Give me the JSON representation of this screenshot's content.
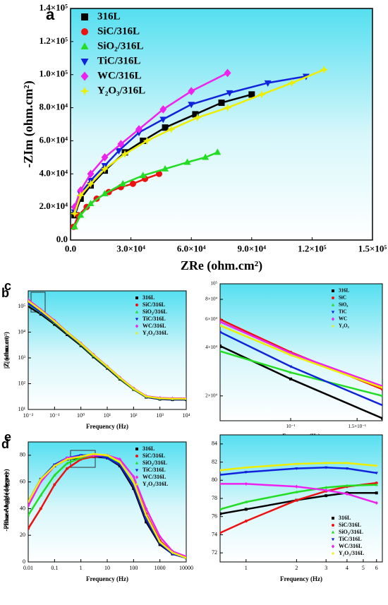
{
  "chart_data": [
    {
      "type": "scatter",
      "panel_label": "a",
      "xlabel": "ZRe (ohm.cm²)",
      "ylabel": "-ZIm (ohm.cm²)",
      "xlim": [
        0,
        150000
      ],
      "ylim": [
        0,
        140000
      ],
      "xticks": [
        {
          "value": 0,
          "label": "0.0"
        },
        {
          "value": 30000,
          "label": "3.0×10⁴"
        },
        {
          "value": 60000,
          "label": "6.0×10⁴"
        },
        {
          "value": 90000,
          "label": "9.0×10⁴"
        },
        {
          "value": 120000,
          "label": "1.2×10⁵"
        },
        {
          "value": 150000,
          "label": "1.5×10⁵"
        }
      ],
      "yticks": [
        {
          "value": 0,
          "label": "0.0"
        },
        {
          "value": 20000,
          "label": "2.0×10⁴"
        },
        {
          "value": 40000,
          "label": "4.0×10⁴"
        },
        {
          "value": 60000,
          "label": "6.0×10⁴"
        },
        {
          "value": 80000,
          "label": "8.0×10⁴"
        },
        {
          "value": 100000,
          "label": "1.0×10⁵"
        },
        {
          "value": 120000,
          "label": "1.2×10⁵"
        },
        {
          "value": 140000,
          "label": "1.4×10⁵"
        }
      ],
      "legend": "top-left",
      "series": [
        {
          "name": "316L",
          "color": "#000000",
          "marker": "square",
          "x": [
            2000,
            5000,
            10000,
            17000,
            27000,
            36000,
            47000,
            62000,
            75000,
            90000
          ],
          "values": [
            15000,
            25000,
            33000,
            42000,
            53000,
            60000,
            68000,
            76000,
            83000,
            88000
          ]
        },
        {
          "name": "SiC/316L",
          "color": "#ee1111",
          "marker": "circle",
          "x": [
            1500,
            4000,
            8000,
            13000,
            19000,
            25000,
            31000,
            37000,
            44000
          ],
          "values": [
            8000,
            15000,
            20000,
            25000,
            29000,
            32000,
            34000,
            37000,
            40000
          ]
        },
        {
          "name": "SiO₂/316L",
          "color": "#22dd22",
          "marker": "triangle",
          "x": [
            2000,
            5000,
            10000,
            17000,
            26000,
            36000,
            47000,
            58000,
            67000,
            73000
          ],
          "values": [
            8000,
            15000,
            22000,
            28000,
            34000,
            39000,
            43000,
            47000,
            50000,
            53000
          ]
        },
        {
          "name": "TiC/316L",
          "color": "#1122dd",
          "marker": "triangle-down",
          "x": [
            2000,
            5000,
            10000,
            17000,
            24000,
            34000,
            46000,
            60000,
            79000,
            98000,
            117000
          ],
          "values": [
            17000,
            28000,
            36000,
            45000,
            54000,
            65000,
            73000,
            82000,
            89000,
            95000,
            99000
          ]
        },
        {
          "name": "WC/316L",
          "color": "#ee22ee",
          "marker": "diamond",
          "x": [
            2000,
            5000,
            10000,
            17000,
            25000,
            34000,
            46000,
            60000,
            78000
          ],
          "values": [
            20000,
            30000,
            40000,
            50000,
            58000,
            67000,
            79000,
            90000,
            101000
          ]
        },
        {
          "name": "Y₂O₃/316L",
          "color": "#eeee00",
          "marker": "star",
          "x": [
            2000,
            5000,
            10000,
            17000,
            27000,
            38000,
            50000,
            63000,
            78000,
            95000,
            110000,
            126000
          ],
          "values": [
            16000,
            27000,
            34000,
            43000,
            52000,
            60000,
            67000,
            74000,
            80000,
            88000,
            95000,
            103000
          ]
        }
      ]
    },
    {
      "type": "line",
      "panel_label": "b",
      "xlabel": "Frequency (Hz)",
      "ylabel": "|Z| (ohm.cm²)",
      "xlog": true,
      "ylog": true,
      "xlim": [
        0.01,
        10000
      ],
      "ylim": [
        10,
        400000
      ],
      "xticks": [
        {
          "value": 0.01,
          "label": "10⁻²"
        },
        {
          "value": 0.1,
          "label": "10⁻¹"
        },
        {
          "value": 1,
          "label": "10⁰"
        },
        {
          "value": 10,
          "label": "10¹"
        },
        {
          "value": 100,
          "label": "10²"
        },
        {
          "value": 1000,
          "label": "10³"
        },
        {
          "value": 10000,
          "label": "10⁴"
        }
      ],
      "yticks": [
        {
          "value": 10,
          "label": "10¹"
        },
        {
          "value": 100,
          "label": "10²"
        },
        {
          "value": 1000,
          "label": "10³"
        },
        {
          "value": 10000,
          "label": "10⁴"
        },
        {
          "value": 100000,
          "label": "10⁵"
        }
      ],
      "legend": "top-right",
      "x": [
        0.01,
        0.03,
        0.1,
        0.3,
        1,
        3,
        10,
        30,
        100,
        300,
        1000,
        3000,
        10000
      ],
      "series": [
        {
          "name": "316L",
          "color": "#000000",
          "marker": "square",
          "values": [
            100000,
            50000,
            20000,
            8000,
            3000,
            1100,
            400,
            150,
            60,
            30,
            25,
            24,
            24
          ]
        },
        {
          "name": "SiC/316L",
          "color": "#ee1111",
          "marker": "circle",
          "values": [
            140000,
            65000,
            25000,
            9500,
            3500,
            1300,
            450,
            170,
            65,
            32,
            27,
            26,
            26
          ]
        },
        {
          "name": "SiO₂/316L",
          "color": "#22dd22",
          "marker": "triangle",
          "values": [
            120000,
            58000,
            23000,
            9000,
            3300,
            1200,
            430,
            160,
            62,
            31,
            26,
            25,
            25
          ]
        },
        {
          "name": "TiC/316L",
          "color": "#1122dd",
          "marker": "triangle-down",
          "values": [
            130000,
            60000,
            24000,
            9200,
            3400,
            1250,
            440,
            165,
            63,
            31,
            26,
            25,
            25
          ]
        },
        {
          "name": "WC/316L",
          "color": "#ee22ee",
          "marker": "diamond",
          "values": [
            180000,
            75000,
            28000,
            10000,
            3700,
            1350,
            470,
            175,
            66,
            33,
            28,
            27,
            27
          ]
        },
        {
          "name": "Y₂O₃/316L",
          "color": "#eeee00",
          "marker": "star",
          "values": [
            160000,
            70000,
            26000,
            9800,
            3600,
            1300,
            460,
            170,
            64,
            32,
            27,
            26,
            26
          ]
        }
      ]
    },
    {
      "type": "line",
      "panel_label": "c",
      "xlabel": "Frequency (Hz)",
      "ylabel": "|Z| (ohm.cm²)",
      "xlog": true,
      "ylog": true,
      "xlim": [
        0.065,
        0.175
      ],
      "ylim": [
        14000,
        100000
      ],
      "xticks": [
        {
          "value": 0.1,
          "label": "10⁻¹"
        },
        {
          "value": 0.15,
          "label": "1.5×10⁻¹"
        }
      ],
      "yticks": [
        {
          "value": 20000,
          "label": "2×10⁴"
        },
        {
          "value": 40000,
          "label": "4×10⁴"
        },
        {
          "value": 60000,
          "label": "6×10⁴"
        },
        {
          "value": 80000,
          "label": "8×10⁴"
        },
        {
          "value": 100000,
          "label": "10⁵"
        }
      ],
      "legend": "top-right",
      "x": [
        0.065,
        0.1,
        0.175
      ],
      "series": [
        {
          "name": "316L",
          "color": "#000000",
          "marker": "square",
          "values": [
            41000,
            25500,
            14500
          ]
        },
        {
          "name": "SiC",
          "color": "#ee1111",
          "marker": "circle",
          "values": [
            60000,
            37500,
            22000
          ]
        },
        {
          "name": "SiO₂",
          "color": "#22dd22",
          "marker": "triangle",
          "values": [
            38000,
            28000,
            20000
          ]
        },
        {
          "name": "TiC",
          "color": "#1122dd",
          "marker": "triangle-down",
          "values": [
            50000,
            30500,
            17500
          ]
        },
        {
          "name": "WC",
          "color": "#ee22ee",
          "marker": "diamond",
          "values": [
            58000,
            37000,
            23000
          ]
        },
        {
          "name": "Y₂O₃",
          "color": "#eeee00",
          "marker": "star",
          "values": [
            55000,
            36000,
            22500
          ]
        }
      ]
    },
    {
      "type": "line",
      "panel_label": "d",
      "xlabel": "Frequency (Hz)",
      "ylabel": "-Phase Angle (degree)",
      "xlog": true,
      "xlim": [
        0.01,
        10000
      ],
      "ylim": [
        0,
        90
      ],
      "xticks": [
        0.01,
        0.1,
        1,
        10,
        100,
        1000,
        10000
      ],
      "yticks": [
        0,
        20,
        40,
        60,
        80
      ],
      "legend": "top-right",
      "x": [
        0.01,
        0.03,
        0.1,
        0.3,
        1,
        3,
        10,
        30,
        100,
        300,
        1000,
        3000,
        10000
      ],
      "series": [
        {
          "name": "316L",
          "color": "#000000",
          "marker": "square",
          "values": [
            45,
            62,
            72,
            77,
            78,
            79,
            78,
            72,
            55,
            30,
            13,
            6,
            3
          ]
        },
        {
          "name": "SiC/316L",
          "color": "#ee1111",
          "marker": "circle",
          "values": [
            25,
            40,
            58,
            70,
            77,
            79,
            79,
            75,
            60,
            36,
            16,
            7,
            3
          ]
        },
        {
          "name": "SiO₂/316L",
          "color": "#22dd22",
          "marker": "triangle",
          "values": [
            35,
            50,
            65,
            74,
            78,
            80,
            79,
            74,
            58,
            33,
            15,
            7,
            3
          ]
        },
        {
          "name": "TiC/316L",
          "color": "#1122dd",
          "marker": "triangle-down",
          "values": [
            45,
            62,
            73,
            78,
            80,
            80,
            78,
            73,
            57,
            32,
            14,
            6,
            3
          ]
        },
        {
          "name": "WC/316L",
          "color": "#ee22ee",
          "marker": "diamond",
          "values": [
            42,
            60,
            72,
            78,
            79,
            80,
            80,
            77,
            64,
            40,
            19,
            8,
            4
          ]
        },
        {
          "name": "Y₂O₃/316L",
          "color": "#eeee00",
          "marker": "star",
          "values": [
            45,
            62,
            72,
            77,
            79,
            81,
            80,
            75,
            60,
            35,
            15,
            7,
            3
          ]
        }
      ]
    },
    {
      "type": "line",
      "panel_label": "e",
      "xlabel": "Frequency (Hz)",
      "ylabel": "-Phase Angle (degree)",
      "xlog": true,
      "xlim": [
        0.7,
        6.5
      ],
      "ylim": [
        71,
        85
      ],
      "xticks": [
        1,
        2,
        3,
        4,
        5,
        6
      ],
      "yticks": [
        72,
        74,
        76,
        78,
        80,
        82,
        84
      ],
      "legend": "bottom-right",
      "x": [
        0.7,
        1,
        2,
        3,
        4,
        6
      ],
      "series": [
        {
          "name": "316L",
          "color": "#000000",
          "marker": "square",
          "values": [
            76.3,
            76.8,
            77.8,
            78.3,
            78.6,
            78.6
          ]
        },
        {
          "name": "SiC/316L",
          "color": "#ee1111",
          "marker": "circle",
          "values": [
            74.2,
            75.5,
            77.8,
            78.8,
            79.3,
            79.7
          ]
        },
        {
          "name": "SiO₂/316L",
          "color": "#22dd22",
          "marker": "triangle",
          "values": [
            76.8,
            77.6,
            78.7,
            79.2,
            79.4,
            79.5
          ]
        },
        {
          "name": "TiC/316L",
          "color": "#1122dd",
          "marker": "triangle-down",
          "values": [
            80.6,
            80.9,
            81.3,
            81.4,
            81.3,
            80.8
          ]
        },
        {
          "name": "WC/316L",
          "color": "#ee22ee",
          "marker": "diamond",
          "values": [
            79.6,
            79.6,
            79.3,
            78.9,
            78.5,
            77.5
          ]
        },
        {
          "name": "Y₂O₃/316L",
          "color": "#eeee00",
          "marker": "star",
          "values": [
            81.1,
            81.4,
            81.8,
            81.9,
            81.9,
            81.6
          ]
        }
      ]
    }
  ]
}
